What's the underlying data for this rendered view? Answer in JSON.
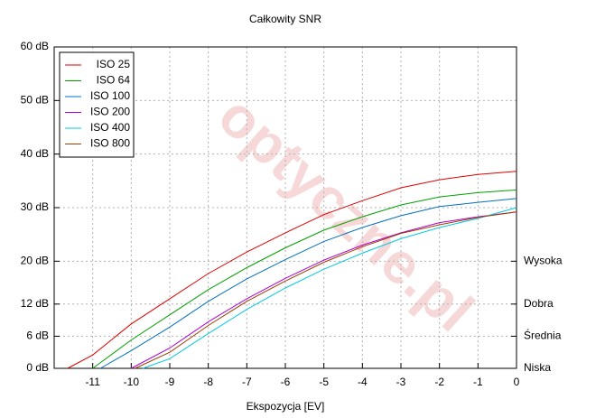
{
  "chart_data": {
    "type": "line",
    "title": "Całkowity SNR",
    "x_label": "Ekspozycja [EV]",
    "watermark": "optyczne.pl",
    "xlim": [
      -12,
      0
    ],
    "xticks": [
      -11,
      -10,
      -9,
      -8,
      -7,
      -6,
      -5,
      -4,
      -3,
      -2,
      -1,
      0
    ],
    "ylim": [
      0,
      60
    ],
    "yticks": [
      {
        "value": 0,
        "label": "0 dB"
      },
      {
        "value": 6,
        "label": "6 dB"
      },
      {
        "value": 12,
        "label": "12 dB"
      },
      {
        "value": 20,
        "label": "20 dB"
      },
      {
        "value": 30,
        "label": "30 dB"
      },
      {
        "value": 40,
        "label": "40 dB"
      },
      {
        "value": 50,
        "label": "50 dB"
      },
      {
        "value": 60,
        "label": "60 dB"
      }
    ],
    "y2lim": [
      0,
      60
    ],
    "y2ticks": [
      {
        "value": 0,
        "label": "Niska"
      },
      {
        "value": 6,
        "label": "Średnia"
      },
      {
        "value": 12,
        "label": "Dobra"
      },
      {
        "value": 20,
        "label": "Wysoka"
      }
    ],
    "grid": true,
    "legend": "top-left",
    "series": [
      {
        "name": "ISO 25",
        "color": "#e00000",
        "x": [
          -11.65,
          -11,
          -10,
          -9,
          -8,
          -7,
          -6,
          -5,
          -4,
          -3,
          -2,
          -1,
          0
        ],
        "values": [
          0,
          2.5,
          8.3,
          13,
          17.7,
          21.7,
          25.3,
          28.7,
          31.3,
          33.7,
          35.2,
          36.2,
          36.8
        ]
      },
      {
        "name": "ISO 64",
        "color": "#00a000",
        "x": [
          -11,
          -10,
          -9,
          -8,
          -7,
          -6,
          -5,
          -4,
          -3,
          -2,
          -1,
          0
        ],
        "values": [
          0,
          5.3,
          10,
          14.7,
          18.8,
          22.5,
          25.8,
          28.3,
          30.5,
          32,
          32.8,
          33.3
        ]
      },
      {
        "name": "ISO 100",
        "color": "#0070c0",
        "x": [
          -10.8,
          -10,
          -9,
          -8,
          -7,
          -6,
          -5,
          -4,
          -3,
          -2,
          -1,
          0
        ],
        "values": [
          0,
          3.3,
          7.7,
          12.5,
          16.7,
          20.3,
          23.7,
          26.3,
          28.5,
          30.2,
          31,
          31.7
        ]
      },
      {
        "name": "ISO 200",
        "color": "#b000d0",
        "x": [
          -10,
          -9,
          -8,
          -7,
          -6,
          -5,
          -4,
          -3,
          -2,
          -1,
          0
        ],
        "values": [
          0,
          3.8,
          8.7,
          13,
          16.8,
          20.2,
          23,
          25.3,
          27.2,
          28.3,
          29.2
        ]
      },
      {
        "name": "ISO 400",
        "color": "#00c8e0",
        "x": [
          -9.7,
          -9,
          -8,
          -7,
          -6,
          -5,
          -4,
          -3,
          -2,
          -1,
          0
        ],
        "values": [
          0,
          1.8,
          6.5,
          11,
          15,
          18.5,
          21.5,
          24.2,
          26.3,
          28,
          30
        ]
      },
      {
        "name": "ISO 800",
        "color": "#a04000",
        "x": [
          -9.9,
          -9,
          -8,
          -7,
          -6,
          -5,
          -4,
          -3,
          -2,
          -1,
          0
        ],
        "values": [
          0,
          3,
          8,
          12.5,
          16.3,
          19.8,
          22.7,
          25.2,
          26.8,
          28.2,
          29.2
        ]
      }
    ]
  }
}
